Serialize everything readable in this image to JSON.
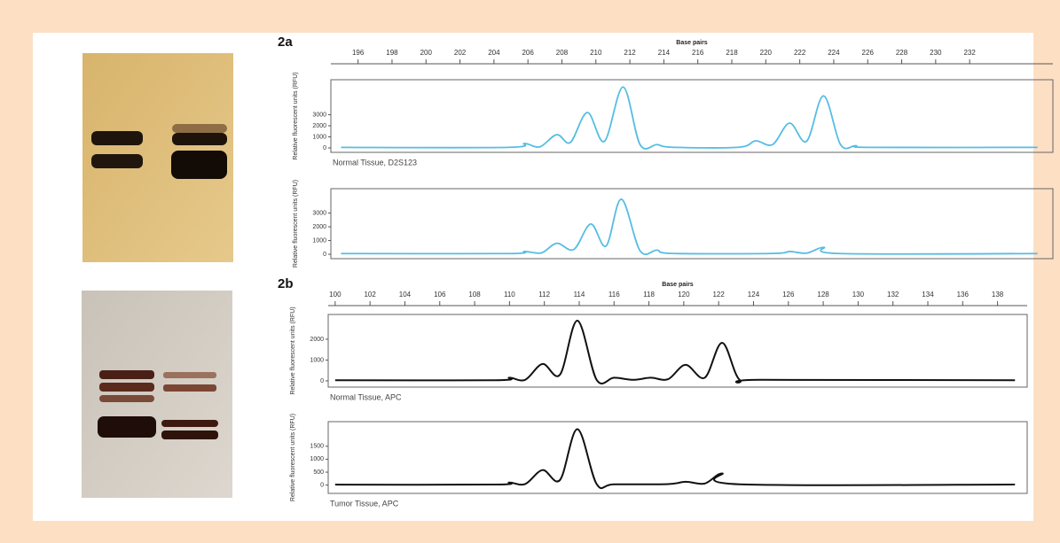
{
  "chart_data": [
    {
      "type": "line",
      "panel": "2a",
      "xlabel": "Base pairs",
      "ylabel": "Relative fluorescent units (RFU)",
      "caption": "Normal Tissue, D2S123",
      "color": "#56bde3",
      "xlim": [
        194.4,
        236.9
      ],
      "xticks": [
        196,
        198,
        200,
        202,
        204,
        206,
        208,
        210,
        212,
        214,
        216,
        218,
        220,
        222,
        224,
        226,
        228,
        230,
        232
      ],
      "ylim": [
        -400,
        6160
      ],
      "yticks": [
        0,
        1000,
        2000,
        3000
      ],
      "x": [
        195,
        204.8,
        205.8,
        206.7,
        207.7,
        208.5,
        209.5,
        210.5,
        211.6,
        212.6,
        213.6,
        214.5,
        218.4,
        219.4,
        220.4,
        221.4,
        222.4,
        223.4,
        224.4,
        225.3,
        226.2,
        236
      ],
      "values": [
        50,
        50,
        400,
        100,
        1200,
        500,
        3200,
        600,
        5500,
        300,
        300,
        60,
        60,
        640,
        300,
        2240,
        600,
        4700,
        300,
        200,
        50,
        50
      ]
    },
    {
      "type": "line",
      "ylabel": "Relative fluorescent units (RFU)",
      "color": "#56bde3",
      "xlim": [
        194.4,
        236.9
      ],
      "ylim": [
        -320,
        4770
      ],
      "yticks": [
        0,
        1000,
        2000,
        3000
      ],
      "x": [
        195,
        204.8,
        205.8,
        206.8,
        207.7,
        208.7,
        209.7,
        210.6,
        211.5,
        212.6,
        213.6,
        214.5,
        220.4,
        221.4,
        222.4,
        223.4,
        224.4,
        236
      ],
      "values": [
        50,
        50,
        200,
        100,
        800,
        350,
        2200,
        600,
        4000,
        250,
        300,
        60,
        60,
        200,
        80,
        500,
        50,
        50
      ]
    },
    {
      "type": "line",
      "panel": "2b",
      "xlabel": "Base pairs",
      "ylabel": "Relative fluorescent units (RFU)",
      "caption": "Normal Tissue, APC",
      "color": "#111111",
      "xlim": [
        99.6,
        139.7
      ],
      "xticks": [
        100,
        102,
        104,
        106,
        108,
        110,
        112,
        114,
        116,
        118,
        120,
        122,
        124,
        126,
        128,
        130,
        132,
        134,
        136,
        138
      ],
      "ylim": [
        -300,
        3190
      ],
      "yticks": [
        0,
        1000,
        2000
      ],
      "x": [
        100,
        109.2,
        110,
        110.9,
        111.9,
        112.9,
        113.9,
        115,
        116,
        117.1,
        118.1,
        119.1,
        120.1,
        121.2,
        122.2,
        123.2,
        124.5,
        139
      ],
      "values": [
        30,
        30,
        150,
        50,
        810,
        300,
        2890,
        50,
        150,
        50,
        150,
        80,
        770,
        150,
        1830,
        50,
        50,
        30
      ]
    },
    {
      "type": "line",
      "ylabel": "Relative fluorescent units (RFU)",
      "caption": "Tumor Tissue, APC",
      "color": "#111111",
      "xlim": [
        99.6,
        139.7
      ],
      "ylim": [
        -320,
        2450
      ],
      "yticks": [
        0,
        500,
        1000,
        1500
      ],
      "x": [
        100,
        109.2,
        110,
        110.9,
        111.9,
        112.9,
        113.9,
        115,
        116,
        119.1,
        120.1,
        121.2,
        122.2,
        123.2,
        139
      ],
      "values": [
        20,
        20,
        100,
        40,
        580,
        200,
        2160,
        40,
        30,
        40,
        130,
        60,
        450,
        30,
        20
      ]
    }
  ]
}
